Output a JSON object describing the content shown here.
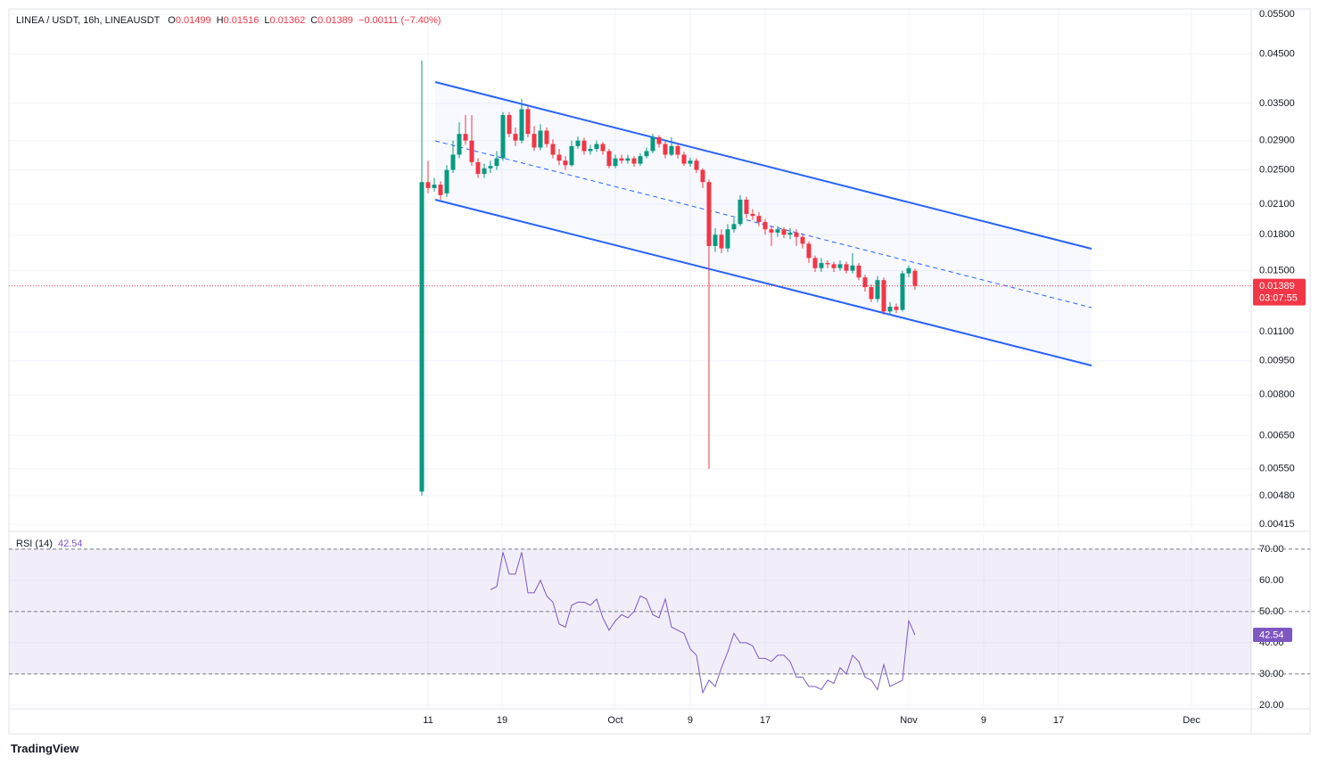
{
  "brand": "TradingView",
  "chart_data": [
    {
      "type": "candlestick",
      "title": "LINEA / USDT, 16h, LINEAUSDT",
      "ohlc_labels": [
        "O",
        "H",
        "L",
        "C"
      ],
      "change_label": "−0.00111 (−7.40%)",
      "countdown": "03:07:55",
      "up_color": "#089981",
      "down_color": "#f23645",
      "log_scale": true,
      "grid": true,
      "ylim": [
        0.00406,
        0.0565
      ],
      "yticks": [
        {
          "value": 0.055,
          "label": "0.05500"
        },
        {
          "value": 0.045,
          "label": "0.04500"
        },
        {
          "value": 0.035,
          "label": "0.03500"
        },
        {
          "value": 0.029,
          "label": "0.02900"
        },
        {
          "value": 0.025,
          "label": "0.02500"
        },
        {
          "value": 0.021,
          "label": "0.02100"
        },
        {
          "value": 0.018,
          "label": "0.01800"
        },
        {
          "value": 0.015,
          "label": "0.01500"
        },
        {
          "value": 0.011,
          "label": "0.01100"
        },
        {
          "value": 0.0095,
          "label": "0.00950"
        },
        {
          "value": 0.008,
          "label": "0.00800"
        },
        {
          "value": 0.0065,
          "label": "0.00650"
        },
        {
          "value": 0.0055,
          "label": "0.00550"
        },
        {
          "value": 0.0048,
          "label": "0.00480"
        },
        {
          "value": 0.00415,
          "label": "0.00415"
        }
      ],
      "xlim": [
        -66.14,
        132.86
      ],
      "xticks": [
        {
          "value": 1,
          "label": "11"
        },
        {
          "value": 12.86,
          "label": "19"
        },
        {
          "value": 31,
          "label": "Oct"
        },
        {
          "value": 43,
          "label": "9"
        },
        {
          "value": 55,
          "label": "17"
        },
        {
          "value": 78,
          "label": "Nov"
        },
        {
          "value": 90,
          "label": "9"
        },
        {
          "value": 102,
          "label": "17"
        },
        {
          "value": 123.3,
          "label": "Dec"
        }
      ],
      "open": [
        0.0049,
        0.0235,
        0.0228,
        0.0232,
        0.0222,
        0.025,
        0.027,
        0.03,
        0.029,
        0.026,
        0.0245,
        0.0252,
        0.0255,
        0.0265,
        0.033,
        0.03,
        0.029,
        0.034,
        0.03,
        0.028,
        0.0305,
        0.0285,
        0.027,
        0.0262,
        0.0256,
        0.0282,
        0.029,
        0.0275,
        0.0278,
        0.0285,
        0.0275,
        0.0255,
        0.0265,
        0.0262,
        0.0265,
        0.0258,
        0.0268,
        0.0275,
        0.0295,
        0.0285,
        0.027,
        0.0282,
        0.027,
        0.0258,
        0.0262,
        0.025,
        0.0235,
        0.017,
        0.018,
        0.0168,
        0.0185,
        0.019,
        0.0215,
        0.02,
        0.0198,
        0.0192,
        0.0185,
        0.0182,
        0.0185,
        0.018,
        0.0182,
        0.0178,
        0.0172,
        0.016,
        0.0152,
        0.0156,
        0.0155,
        0.0152,
        0.0155,
        0.015,
        0.0154,
        0.0145,
        0.0138,
        0.013,
        0.0143,
        0.0122,
        0.0125,
        0.0123,
        0.0148,
        0.01499
      ],
      "high": [
        0.0435,
        0.0262,
        0.024,
        0.0236,
        0.0256,
        0.029,
        0.0318,
        0.033,
        0.033,
        0.0265,
        0.0258,
        0.0262,
        0.0275,
        0.0335,
        0.0335,
        0.031,
        0.0358,
        0.0345,
        0.0312,
        0.0315,
        0.031,
        0.0292,
        0.0278,
        0.0268,
        0.029,
        0.0296,
        0.0294,
        0.0284,
        0.029,
        0.0288,
        0.0278,
        0.027,
        0.027,
        0.027,
        0.0268,
        0.0272,
        0.028,
        0.03,
        0.0298,
        0.029,
        0.0295,
        0.0286,
        0.0274,
        0.0266,
        0.0265,
        0.0252,
        0.0238,
        0.0186,
        0.0185,
        0.019,
        0.0196,
        0.022,
        0.0218,
        0.0205,
        0.0202,
        0.0195,
        0.0188,
        0.0188,
        0.0187,
        0.0186,
        0.0185,
        0.018,
        0.0174,
        0.0162,
        0.016,
        0.0158,
        0.0157,
        0.0158,
        0.0157,
        0.0164,
        0.0156,
        0.0147,
        0.014,
        0.0146,
        0.0145,
        0.0128,
        0.0127,
        0.015,
        0.0154,
        0.01516
      ],
      "low": [
        0.0048,
        0.0222,
        0.0224,
        0.0215,
        0.0218,
        0.0246,
        0.0265,
        0.0284,
        0.0255,
        0.024,
        0.024,
        0.0246,
        0.025,
        0.0262,
        0.0295,
        0.0282,
        0.0286,
        0.0295,
        0.0275,
        0.0276,
        0.028,
        0.0265,
        0.0256,
        0.025,
        0.0254,
        0.0278,
        0.027,
        0.027,
        0.0274,
        0.027,
        0.0252,
        0.0252,
        0.0258,
        0.0258,
        0.0254,
        0.0255,
        0.0265,
        0.0272,
        0.028,
        0.0265,
        0.0268,
        0.0265,
        0.0255,
        0.0254,
        0.0246,
        0.0228,
        0.0055,
        0.0165,
        0.0164,
        0.0165,
        0.0182,
        0.0188,
        0.0196,
        0.0194,
        0.0188,
        0.018,
        0.017,
        0.0178,
        0.0177,
        0.0176,
        0.017,
        0.0168,
        0.0156,
        0.0149,
        0.0149,
        0.0152,
        0.0149,
        0.015,
        0.0148,
        0.0148,
        0.0143,
        0.0135,
        0.0128,
        0.0128,
        0.012,
        0.012,
        0.0121,
        0.0122,
        0.0145,
        0.01362
      ],
      "close": [
        0.0235,
        0.0228,
        0.0232,
        0.022,
        0.025,
        0.027,
        0.03,
        0.029,
        0.026,
        0.0245,
        0.0252,
        0.0255,
        0.0265,
        0.033,
        0.03,
        0.029,
        0.034,
        0.03,
        0.028,
        0.0305,
        0.0285,
        0.027,
        0.0262,
        0.0256,
        0.0282,
        0.029,
        0.0275,
        0.0278,
        0.0285,
        0.0275,
        0.0255,
        0.0265,
        0.0262,
        0.0265,
        0.0258,
        0.0268,
        0.0275,
        0.0295,
        0.0285,
        0.027,
        0.0282,
        0.027,
        0.0258,
        0.0262,
        0.025,
        0.0235,
        0.017,
        0.018,
        0.0168,
        0.0185,
        0.019,
        0.0215,
        0.02,
        0.0198,
        0.0192,
        0.0185,
        0.0182,
        0.0185,
        0.018,
        0.0182,
        0.0178,
        0.0172,
        0.016,
        0.0152,
        0.0156,
        0.0155,
        0.0152,
        0.0155,
        0.015,
        0.0154,
        0.0145,
        0.0138,
        0.013,
        0.0143,
        0.0122,
        0.0125,
        0.0123,
        0.0148,
        0.0152,
        0.01389
      ]
    },
    {
      "type": "line",
      "title": "RSI (14)",
      "color": "#7e57c2",
      "ylim": [
        19.4,
        75.1
      ],
      "yticks": [
        {
          "value": 70,
          "label": "70.00"
        },
        {
          "value": 60,
          "label": "60.00"
        },
        {
          "value": 50,
          "label": "50.00"
        },
        {
          "value": 40,
          "label": "40.00"
        },
        {
          "value": 30,
          "label": "30.00"
        },
        {
          "value": 20,
          "label": "20.00"
        }
      ],
      "levels": [
        70,
        50,
        30
      ],
      "values": [
        null,
        null,
        null,
        null,
        null,
        null,
        null,
        null,
        null,
        null,
        null,
        57,
        58,
        69,
        62,
        62,
        69,
        56,
        56,
        60,
        55,
        53,
        46,
        45,
        52,
        53,
        53,
        52,
        54,
        48,
        44,
        47,
        49,
        48,
        50,
        55,
        54,
        49,
        48,
        54,
        45,
        44,
        43,
        38,
        36,
        24,
        28,
        26,
        32,
        37,
        43,
        40,
        40,
        39,
        35,
        35,
        34,
        36,
        36,
        34,
        29,
        29,
        26,
        26,
        25,
        28,
        27,
        32,
        30,
        36,
        34,
        29,
        28,
        25,
        33,
        26,
        27,
        28,
        47,
        42.54
      ]
    }
  ]
}
